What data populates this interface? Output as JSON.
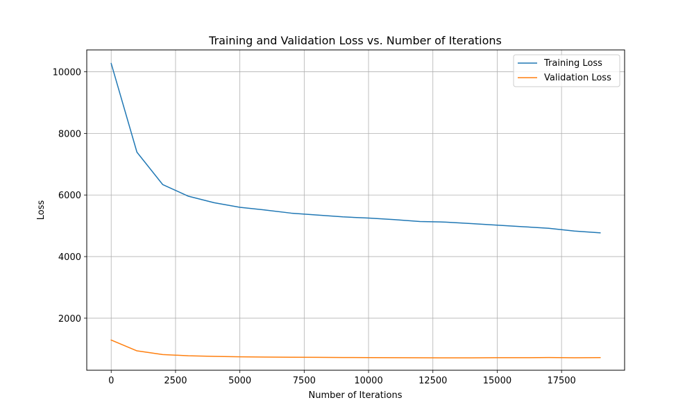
{
  "chart_data": {
    "type": "line",
    "title": "Training and Validation Loss vs. Number of Iterations",
    "xlabel": "Number of Iterations",
    "ylabel": "Loss",
    "xlim": [
      -950,
      19950
    ],
    "ylim": [
      310,
      10710
    ],
    "xticks": [
      0,
      2500,
      5000,
      7500,
      10000,
      12500,
      15000,
      17500
    ],
    "yticks": [
      2000,
      4000,
      6000,
      8000,
      10000
    ],
    "grid": true,
    "legend_position": "top-right",
    "x": [
      0,
      1000,
      2000,
      3000,
      4000,
      5000,
      6000,
      7000,
      8000,
      9000,
      10000,
      11000,
      12000,
      13000,
      14000,
      15000,
      16000,
      17000,
      18000,
      19000
    ],
    "series": [
      {
        "name": "Training Loss",
        "color": "#1f77b4",
        "values": [
          10270,
          7390,
          6340,
          5960,
          5750,
          5600,
          5510,
          5410,
          5350,
          5290,
          5250,
          5200,
          5140,
          5120,
          5070,
          5020,
          4970,
          4920,
          4830,
          4770
        ]
      },
      {
        "name": "Validation Loss",
        "color": "#ff7f0e",
        "values": [
          1290,
          940,
          820,
          780,
          760,
          745,
          738,
          732,
          728,
          724,
          721,
          718,
          715,
          713,
          713,
          718,
          718,
          723,
          714,
          720
        ]
      }
    ]
  }
}
